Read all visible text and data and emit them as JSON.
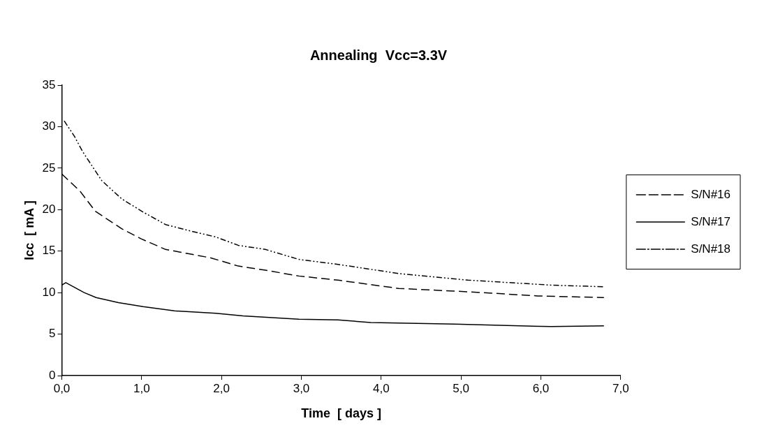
{
  "chart_data": {
    "type": "line",
    "title": "Annealing  Vcc=3.3V",
    "xlabel": "Time  [ days ]",
    "ylabel": "Icc  [ mA ]",
    "xlim": [
      0,
      7
    ],
    "xticks": [
      {
        "value": 0,
        "label": "0,0"
      },
      {
        "value": 1,
        "label": "1,0"
      },
      {
        "value": 2,
        "label": "2,0"
      },
      {
        "value": 3,
        "label": "3,0"
      },
      {
        "value": 4,
        "label": "4,0"
      },
      {
        "value": 5,
        "label": "5,0"
      },
      {
        "value": 6,
        "label": "6,0"
      },
      {
        "value": 7,
        "label": "7,0"
      }
    ],
    "ylim": [
      0,
      35
    ],
    "yticks": [
      0,
      5,
      10,
      15,
      20,
      25,
      30,
      35
    ],
    "grid": false,
    "legend": "right",
    "marker": "none",
    "series": [
      {
        "name": "S/N#16",
        "color": "#000000",
        "line_style": "dashed",
        "x": [
          0,
          0.23,
          0.42,
          0.75,
          0.99,
          1.3,
          1.58,
          1.86,
          2.21,
          2.55,
          2.97,
          3.46,
          4.22,
          5.09,
          5.96,
          6.79
        ],
        "values": [
          24.3,
          22.2,
          19.8,
          17.7,
          16.5,
          15.2,
          14.7,
          14.2,
          13.2,
          12.7,
          12.0,
          11.5,
          10.5,
          10.1,
          9.6,
          9.4
        ]
      },
      {
        "name": "S/N#17",
        "color": "#000000",
        "line_style": "solid",
        "x": [
          0,
          0.05,
          0.28,
          0.43,
          0.71,
          1.02,
          1.41,
          1.93,
          2.27,
          2.97,
          3.46,
          3.87,
          4.92,
          6.13,
          6.79
        ],
        "values": [
          10.9,
          11.2,
          10.0,
          9.4,
          8.8,
          8.3,
          7.8,
          7.5,
          7.2,
          6.8,
          6.7,
          6.4,
          6.2,
          5.9,
          6.0
        ]
      },
      {
        "name": "S/N#18",
        "color": "#000000",
        "line_style": "dotted",
        "x": [
          0.03,
          0.16,
          0.26,
          0.5,
          0.75,
          1.02,
          1.3,
          1.58,
          1.93,
          2.21,
          2.55,
          2.97,
          3.46,
          4.22,
          5.09,
          6.13,
          6.79
        ],
        "values": [
          30.7,
          28.8,
          27.0,
          23.5,
          21.3,
          19.7,
          18.2,
          17.5,
          16.7,
          15.7,
          15.2,
          14.0,
          13.4,
          12.3,
          11.5,
          10.9,
          10.7
        ]
      }
    ]
  }
}
